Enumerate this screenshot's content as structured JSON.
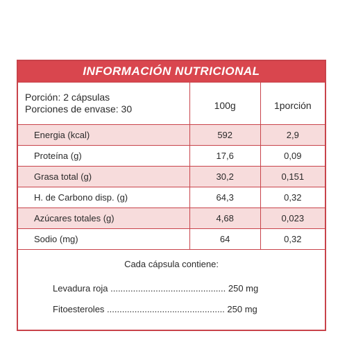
{
  "title": "INFORMACIÓN NUTRICIONAL",
  "header": {
    "portion": "Porción: 2 cápsulas",
    "servings": "Porciones de envase: 30",
    "col_100g": "100g",
    "col_portion": "1porción"
  },
  "rows": [
    {
      "label": "Energia (kcal)",
      "per100": "592",
      "perPortion": "2,9"
    },
    {
      "label": "Proteína (g)",
      "per100": "17,6",
      "perPortion": "0,09"
    },
    {
      "label": "Grasa total (g)",
      "per100": "30,2",
      "perPortion": "0,151"
    },
    {
      "label": "H. de Carbono disp. (g)",
      "per100": "64,3",
      "perPortion": "0,32"
    },
    {
      "label": "Azúcares totales (g)",
      "per100": "4,68",
      "perPortion": "0,023"
    },
    {
      "label": "Sodio (mg)",
      "per100": "64",
      "perPortion": "0,32"
    }
  ],
  "footer": {
    "title": "Cada cápsula contiene:",
    "items": [
      {
        "text": "Levadura roja .............................................. 250 mg"
      },
      {
        "text": "Fitoesteroles ............................................... 250 mg"
      }
    ]
  },
  "colors": {
    "accent": "#d9464e",
    "shade": "#f7dcdc",
    "border": "#c8434a"
  }
}
